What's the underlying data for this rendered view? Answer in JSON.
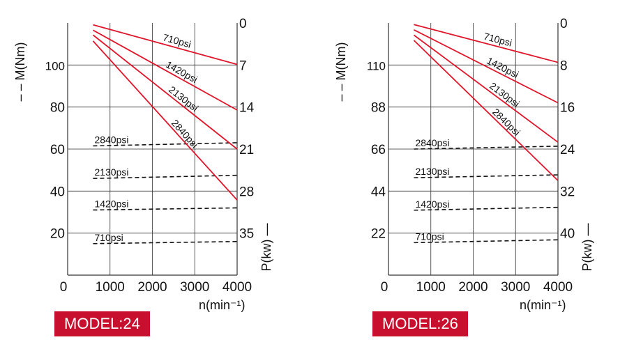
{
  "chart_data": [
    {
      "type": "line",
      "model_label": "MODEL:24",
      "xlabel": "n(min⁻¹)",
      "ylabel_left": "– – M(Nm)",
      "ylabel_right": "P(kw) —",
      "x_ticks": [
        "0",
        "1000",
        "2000",
        "3000",
        "4000"
      ],
      "xlim": [
        0,
        4000
      ],
      "left_ticks": [
        {
          "value": 20,
          "label": "20"
        },
        {
          "value": 40,
          "label": "40"
        },
        {
          "value": 60,
          "label": "60"
        },
        {
          "value": 80,
          "label": "80"
        },
        {
          "value": 100,
          "label": "100"
        }
      ],
      "left_ylim": [
        0,
        120
      ],
      "right_ticks": [
        {
          "value": 0,
          "label": "0"
        },
        {
          "value": 7,
          "label": "7"
        },
        {
          "value": 14,
          "label": "14"
        },
        {
          "value": 21,
          "label": "21"
        },
        {
          "value": 28,
          "label": "28"
        },
        {
          "value": 35,
          "label": "35"
        }
      ],
      "right_ylim": [
        42,
        0
      ],
      "grid": true,
      "power_series": [
        {
          "name": "710psi",
          "x": [
            600,
            4000
          ],
          "y": [
            0.3,
            6.9
          ]
        },
        {
          "name": "1420psi",
          "x": [
            600,
            4000
          ],
          "y": [
            1.2,
            14.5
          ]
        },
        {
          "name": "2130psi",
          "x": [
            600,
            4000
          ],
          "y": [
            2.0,
            21.0
          ]
        },
        {
          "name": "2840psi",
          "x": [
            600,
            4000
          ],
          "y": [
            3.0,
            29.5
          ]
        }
      ],
      "torque_series": [
        {
          "name": "2840psi",
          "x": [
            600,
            4000
          ],
          "y": [
            61.5,
            63.0
          ]
        },
        {
          "name": "2130psi",
          "x": [
            600,
            4000
          ],
          "y": [
            46.0,
            47.5
          ]
        },
        {
          "name": "1420psi",
          "x": [
            600,
            4000
          ],
          "y": [
            31.0,
            32.0
          ]
        },
        {
          "name": "710psi",
          "x": [
            600,
            4000
          ],
          "y": [
            15.0,
            16.0
          ]
        }
      ],
      "colors": {
        "power": "#e0162b",
        "torque": "#111111",
        "grid": "#333333"
      }
    },
    {
      "type": "line",
      "model_label": "MODEL:26",
      "xlabel": "n(min⁻¹)",
      "ylabel_left": "– – M(Nm)",
      "ylabel_right": "P(kw) —",
      "x_ticks": [
        "0",
        "1000",
        "2000",
        "3000",
        "4000"
      ],
      "xlim": [
        0,
        4000
      ],
      "left_ticks": [
        {
          "value": 22,
          "label": "22"
        },
        {
          "value": 44,
          "label": "44"
        },
        {
          "value": 66,
          "label": "66"
        },
        {
          "value": 88,
          "label": "88"
        },
        {
          "value": 110,
          "label": "110"
        }
      ],
      "left_ylim": [
        0,
        132
      ],
      "right_ticks": [
        {
          "value": 0,
          "label": "0"
        },
        {
          "value": 8,
          "label": "8"
        },
        {
          "value": 16,
          "label": "16"
        },
        {
          "value": 24,
          "label": "24"
        },
        {
          "value": 32,
          "label": "32"
        },
        {
          "value": 40,
          "label": "40"
        }
      ],
      "right_ylim": [
        48,
        0
      ],
      "grid": true,
      "power_series": [
        {
          "name": "710psi",
          "x": [
            600,
            4000
          ],
          "y": [
            0.3,
            7.5
          ]
        },
        {
          "name": "1420psi",
          "x": [
            600,
            4000
          ],
          "y": [
            1.3,
            15.2
          ]
        },
        {
          "name": "2130psi",
          "x": [
            600,
            4000
          ],
          "y": [
            2.3,
            22.7
          ]
        },
        {
          "name": "2840psi",
          "x": [
            600,
            4000
          ],
          "y": [
            3.3,
            30.0
          ]
        }
      ],
      "torque_series": [
        {
          "name": "2840psi",
          "x": [
            600,
            4000
          ],
          "y": [
            66.0,
            67.5
          ]
        },
        {
          "name": "2130psi",
          "x": [
            600,
            4000
          ],
          "y": [
            51.0,
            52.5
          ]
        },
        {
          "name": "1420psi",
          "x": [
            600,
            4000
          ],
          "y": [
            34.0,
            35.5
          ]
        },
        {
          "name": "710psi",
          "x": [
            600,
            4000
          ],
          "y": [
            17.0,
            18.5
          ]
        }
      ],
      "colors": {
        "power": "#e0162b",
        "torque": "#111111",
        "grid": "#333333"
      }
    }
  ]
}
